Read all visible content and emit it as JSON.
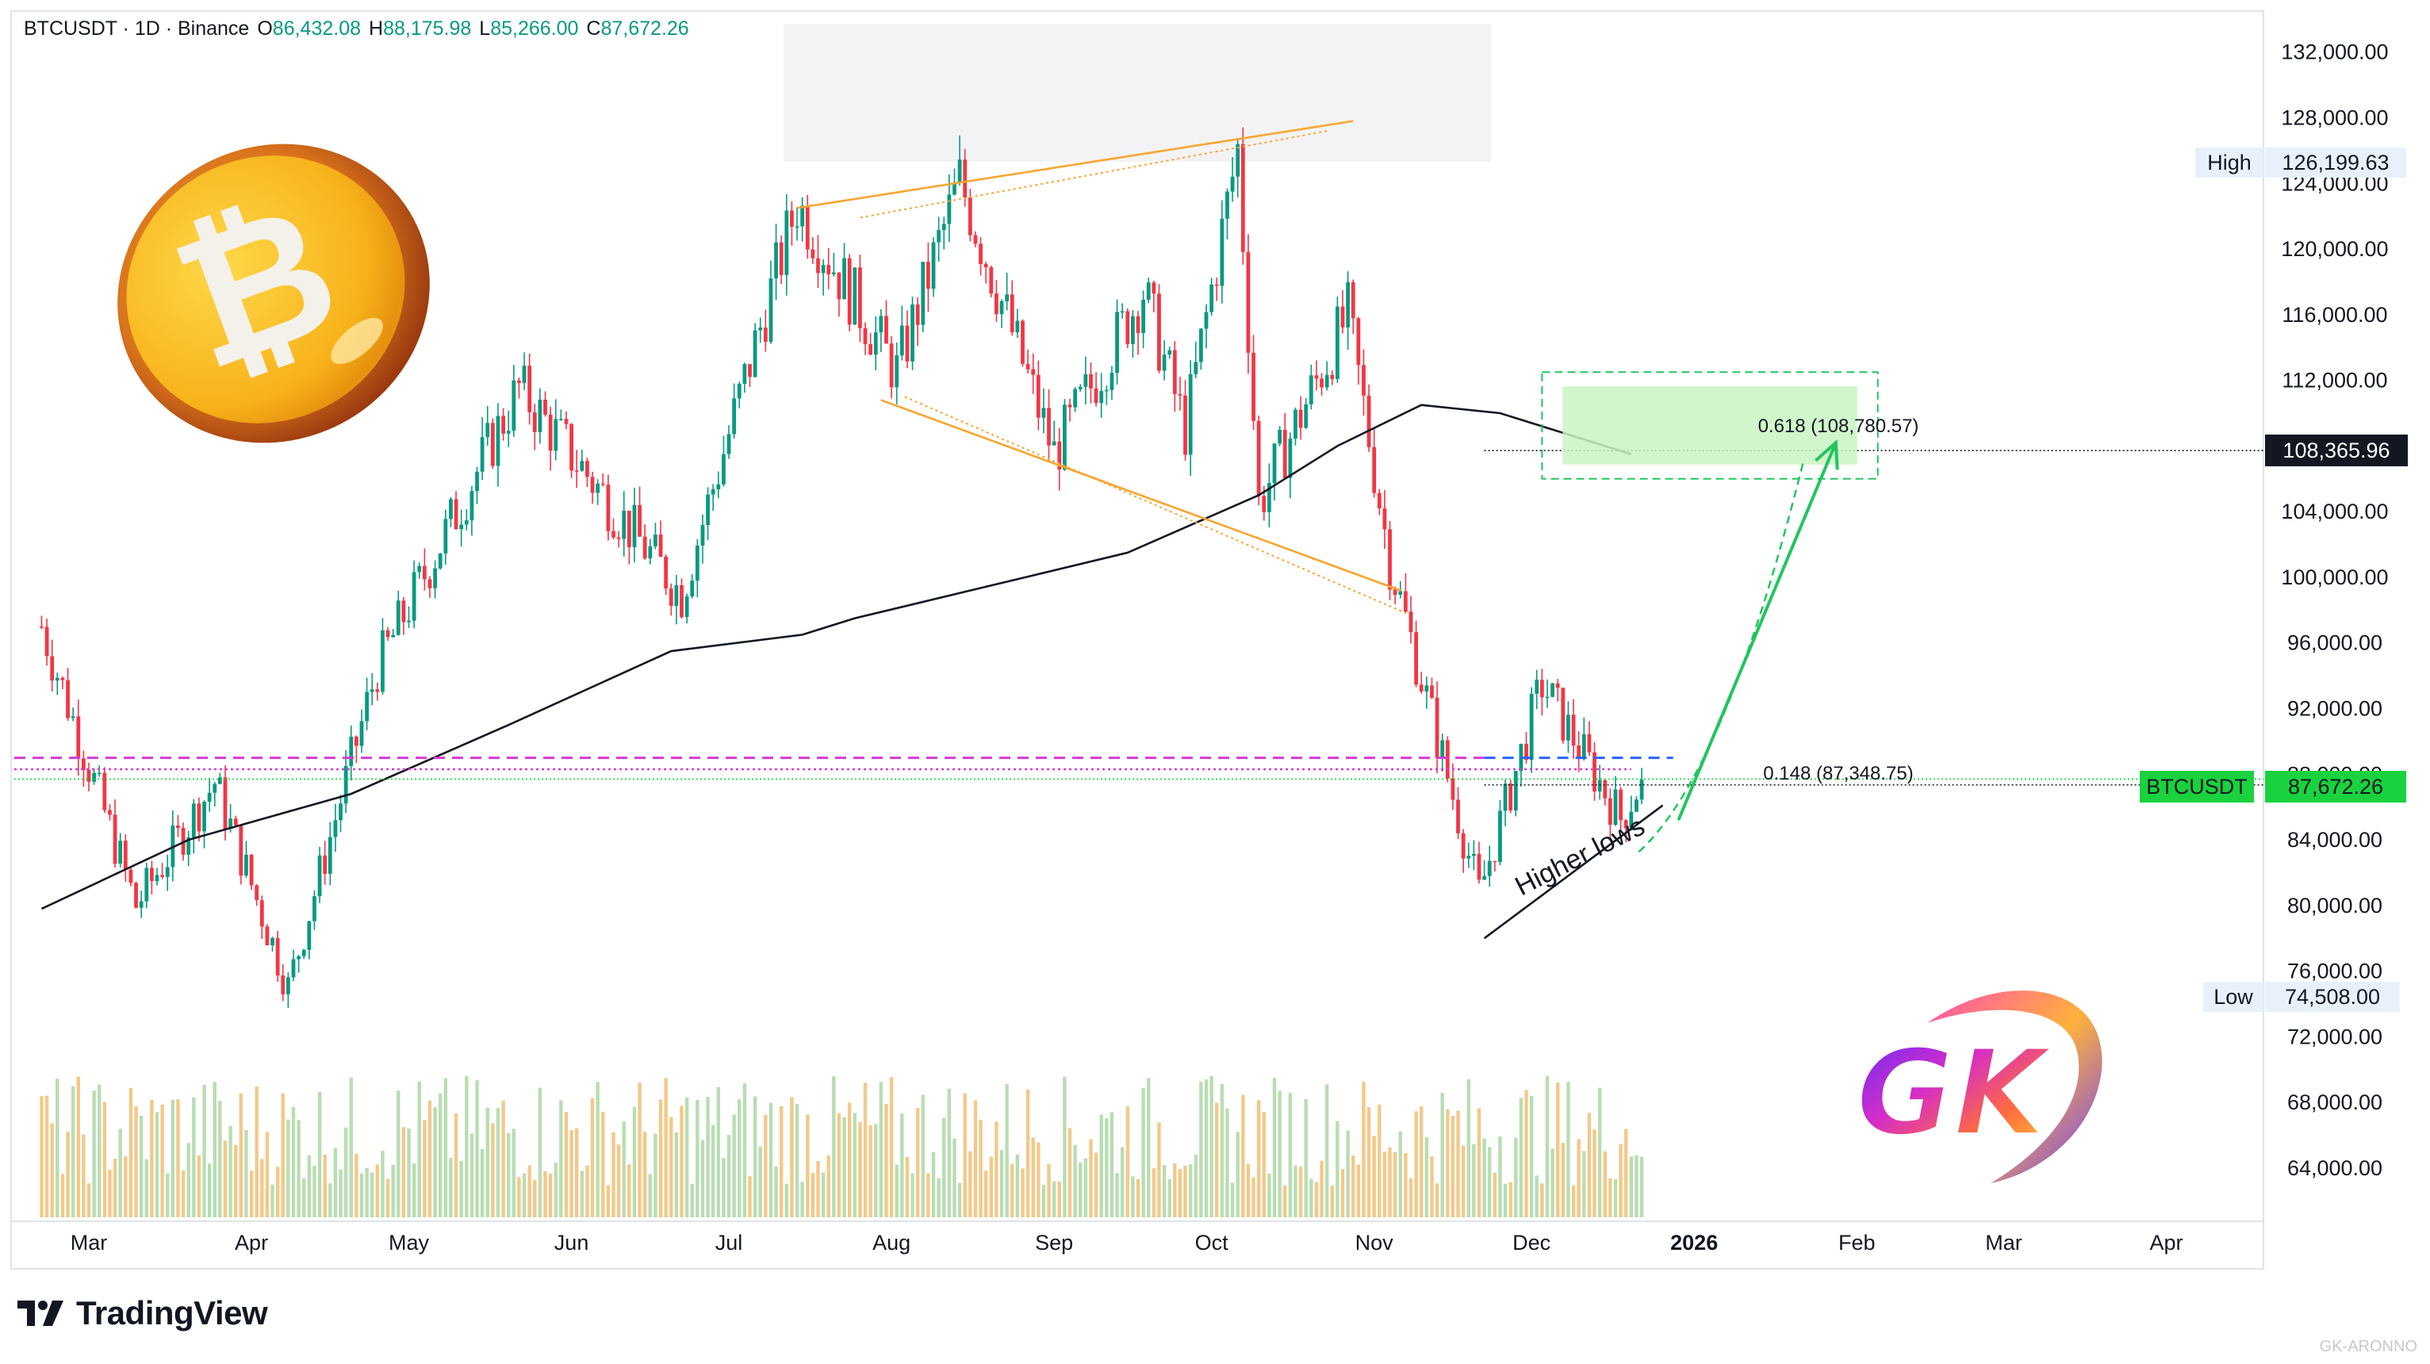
{
  "header": {
    "symbol": "BTCUSDT · 1D · Binance",
    "open_key": "O",
    "open": "86,432.08",
    "high_key": "H",
    "high": "88,175.98",
    "low_key": "L",
    "low": "85,266.00",
    "close_key": "C",
    "close": "87,672.26"
  },
  "branding": {
    "tradingview": "TradingView",
    "watermark": "GK-ARONNO",
    "gk_logo_text": "GK"
  },
  "colors": {
    "up": "#089981",
    "down": "#f23645",
    "sma": "#131722",
    "channel": "#f7a530",
    "target_zone": "#c9f5c2",
    "target_border": "#22c55e",
    "arrow": "#22c55e",
    "magenta_line": "#d63ad6",
    "blue_line": "#2962ff",
    "volume_up": "#b9ddb2",
    "volume_down": "#f2c98a"
  },
  "chart_data": {
    "type": "candlestick",
    "x_ticks": [
      "Mar",
      "Apr",
      "May",
      "Jun",
      "Jul",
      "Aug",
      "Sep",
      "Oct",
      "Nov",
      "Dec",
      "2026",
      "Feb",
      "Mar",
      "Apr"
    ],
    "y_ticks": [
      "132,000.00",
      "128,000.00",
      "124,000.00",
      "120,000.00",
      "116,000.00",
      "112,000.00",
      "108,000.00",
      "104,000.00",
      "100,000.00",
      "96,000.00",
      "92,000.00",
      "88,000.00",
      "84,000.00",
      "80,000.00",
      "76,000.00",
      "72,000.00",
      "68,000.00",
      "64,000.00"
    ],
    "ylim": [
      61000,
      134500
    ],
    "price_labels": {
      "high_label": "High",
      "high_value": "126,199.63",
      "low_label": "Low",
      "low_value": "74,508.00",
      "crosshair_value": "108,365.96",
      "current_symbol": "BTCUSDT",
      "current_value": "87,672.26"
    },
    "fib_levels": [
      {
        "label": "0.618 (108,780.57)",
        "value": 108780.57
      },
      {
        "label": "0.148 (87,348.75)",
        "value": 87348.75
      }
    ],
    "annotations": {
      "higher_lows": "Higher lows"
    },
    "sma_path": [
      [
        "2025-02-20",
        79800
      ],
      [
        "2025-03-20",
        84000
      ],
      [
        "2025-04-20",
        86800
      ],
      [
        "2025-05-20",
        91000
      ],
      [
        "2025-06-20",
        95500
      ],
      [
        "2025-07-15",
        96500
      ],
      [
        "2025-07-25",
        97500
      ],
      [
        "2025-08-20",
        99500
      ],
      [
        "2025-09-15",
        101500
      ],
      [
        "2025-10-10",
        105000
      ],
      [
        "2025-10-25",
        108000
      ],
      [
        "2025-11-10",
        110500
      ],
      [
        "2025-11-25",
        110000
      ],
      [
        "2025-12-20",
        107500
      ]
    ],
    "key_points": [
      [
        "2025-02-20",
        97000
      ],
      [
        "2025-03-10",
        80000
      ],
      [
        "2025-03-25",
        87500
      ],
      [
        "2025-04-08",
        75000
      ],
      [
        "2025-04-25",
        94500
      ],
      [
        "2025-05-22",
        111500
      ],
      [
        "2025-06-22",
        99000
      ],
      [
        "2025-07-14",
        122800
      ],
      [
        "2025-08-02",
        112500
      ],
      [
        "2025-08-14",
        124200
      ],
      [
        "2025-09-01",
        107500
      ],
      [
        "2025-09-18",
        117500
      ],
      [
        "2025-09-26",
        109000
      ],
      [
        "2025-10-06",
        126100
      ],
      [
        "2025-10-10",
        104500
      ],
      [
        "2025-10-27",
        116000
      ],
      [
        "2025-11-04",
        101000
      ],
      [
        "2025-11-21",
        80700
      ],
      [
        "2025-12-03",
        93500
      ],
      [
        "2025-12-18",
        85300
      ],
      [
        "2025-12-22",
        87672
      ]
    ],
    "channel_upper": [
      [
        "2025-07-14",
        122500
      ],
      [
        "2025-10-28",
        127800
      ]
    ],
    "channel_lower": [
      [
        "2025-07-30",
        110800
      ],
      [
        "2025-11-06",
        99200
      ]
    ],
    "higher_lows_line": [
      [
        "2025-11-22",
        78000
      ],
      [
        "2025-12-26",
        86100
      ]
    ],
    "projection": [
      [
        "2025-12-29",
        85200
      ],
      [
        "2026-01-28",
        108200
      ]
    ],
    "target_zone": {
      "x": [
        "2025-12-03",
        "2026-02-05"
      ],
      "y": [
        106000,
        112500
      ]
    },
    "dashed_lines": {
      "magenta": 89000,
      "blue": 89000,
      "dotted_magenta": 88300,
      "green_dotted": 87700
    }
  }
}
